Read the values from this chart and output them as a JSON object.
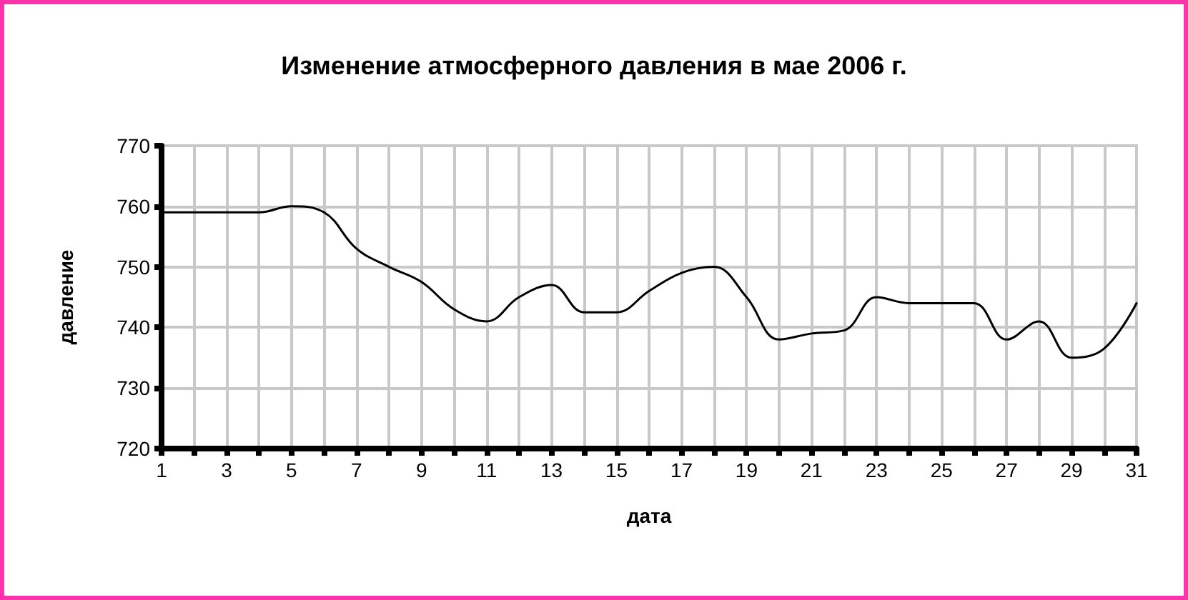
{
  "chart_data": {
    "type": "line",
    "title": "Изменение атмосферного давления в мае 2006 г.",
    "xlabel": "дата",
    "ylabel": "давление",
    "x": [
      1,
      2,
      3,
      4,
      5,
      6,
      7,
      8,
      9,
      10,
      11,
      12,
      13,
      14,
      15,
      16,
      17,
      18,
      19,
      20,
      21,
      22,
      23,
      24,
      25,
      26,
      27,
      28,
      29,
      30,
      31
    ],
    "series": [
      {
        "color": "#000000",
        "values": [
          759,
          759,
          759,
          759,
          760,
          759,
          753,
          750,
          747.5,
          743,
          741,
          745,
          747,
          742.5,
          742.5,
          746,
          749,
          750,
          745,
          738,
          739,
          739.5,
          745,
          744,
          744,
          744,
          738,
          741,
          735,
          736.5,
          744
        ]
      }
    ],
    "xlim": [
      1,
      31
    ],
    "ylim": [
      720,
      770
    ],
    "xticks": [
      1,
      {
        "value": 2,
        "label": null
      },
      3,
      {
        "value": 4,
        "label": null
      },
      5,
      {
        "value": 6,
        "label": null
      },
      7,
      {
        "value": 8,
        "label": null
      },
      9,
      {
        "value": 10,
        "label": null
      },
      11,
      {
        "value": 12,
        "label": null
      },
      13,
      {
        "value": 14,
        "label": null
      },
      15,
      {
        "value": 16,
        "label": null
      },
      17,
      {
        "value": 18,
        "label": null
      },
      19,
      {
        "value": 20,
        "label": null
      },
      21,
      {
        "value": 22,
        "label": null
      },
      23,
      {
        "value": 24,
        "label": null
      },
      25,
      {
        "value": 26,
        "label": null
      },
      27,
      {
        "value": 28,
        "label": null
      },
      29,
      {
        "value": 30,
        "label": null
      },
      31
    ],
    "yticks": [
      720,
      730,
      740,
      750,
      760,
      770
    ],
    "grid": true,
    "marker": "none",
    "line_style": "solid"
  }
}
